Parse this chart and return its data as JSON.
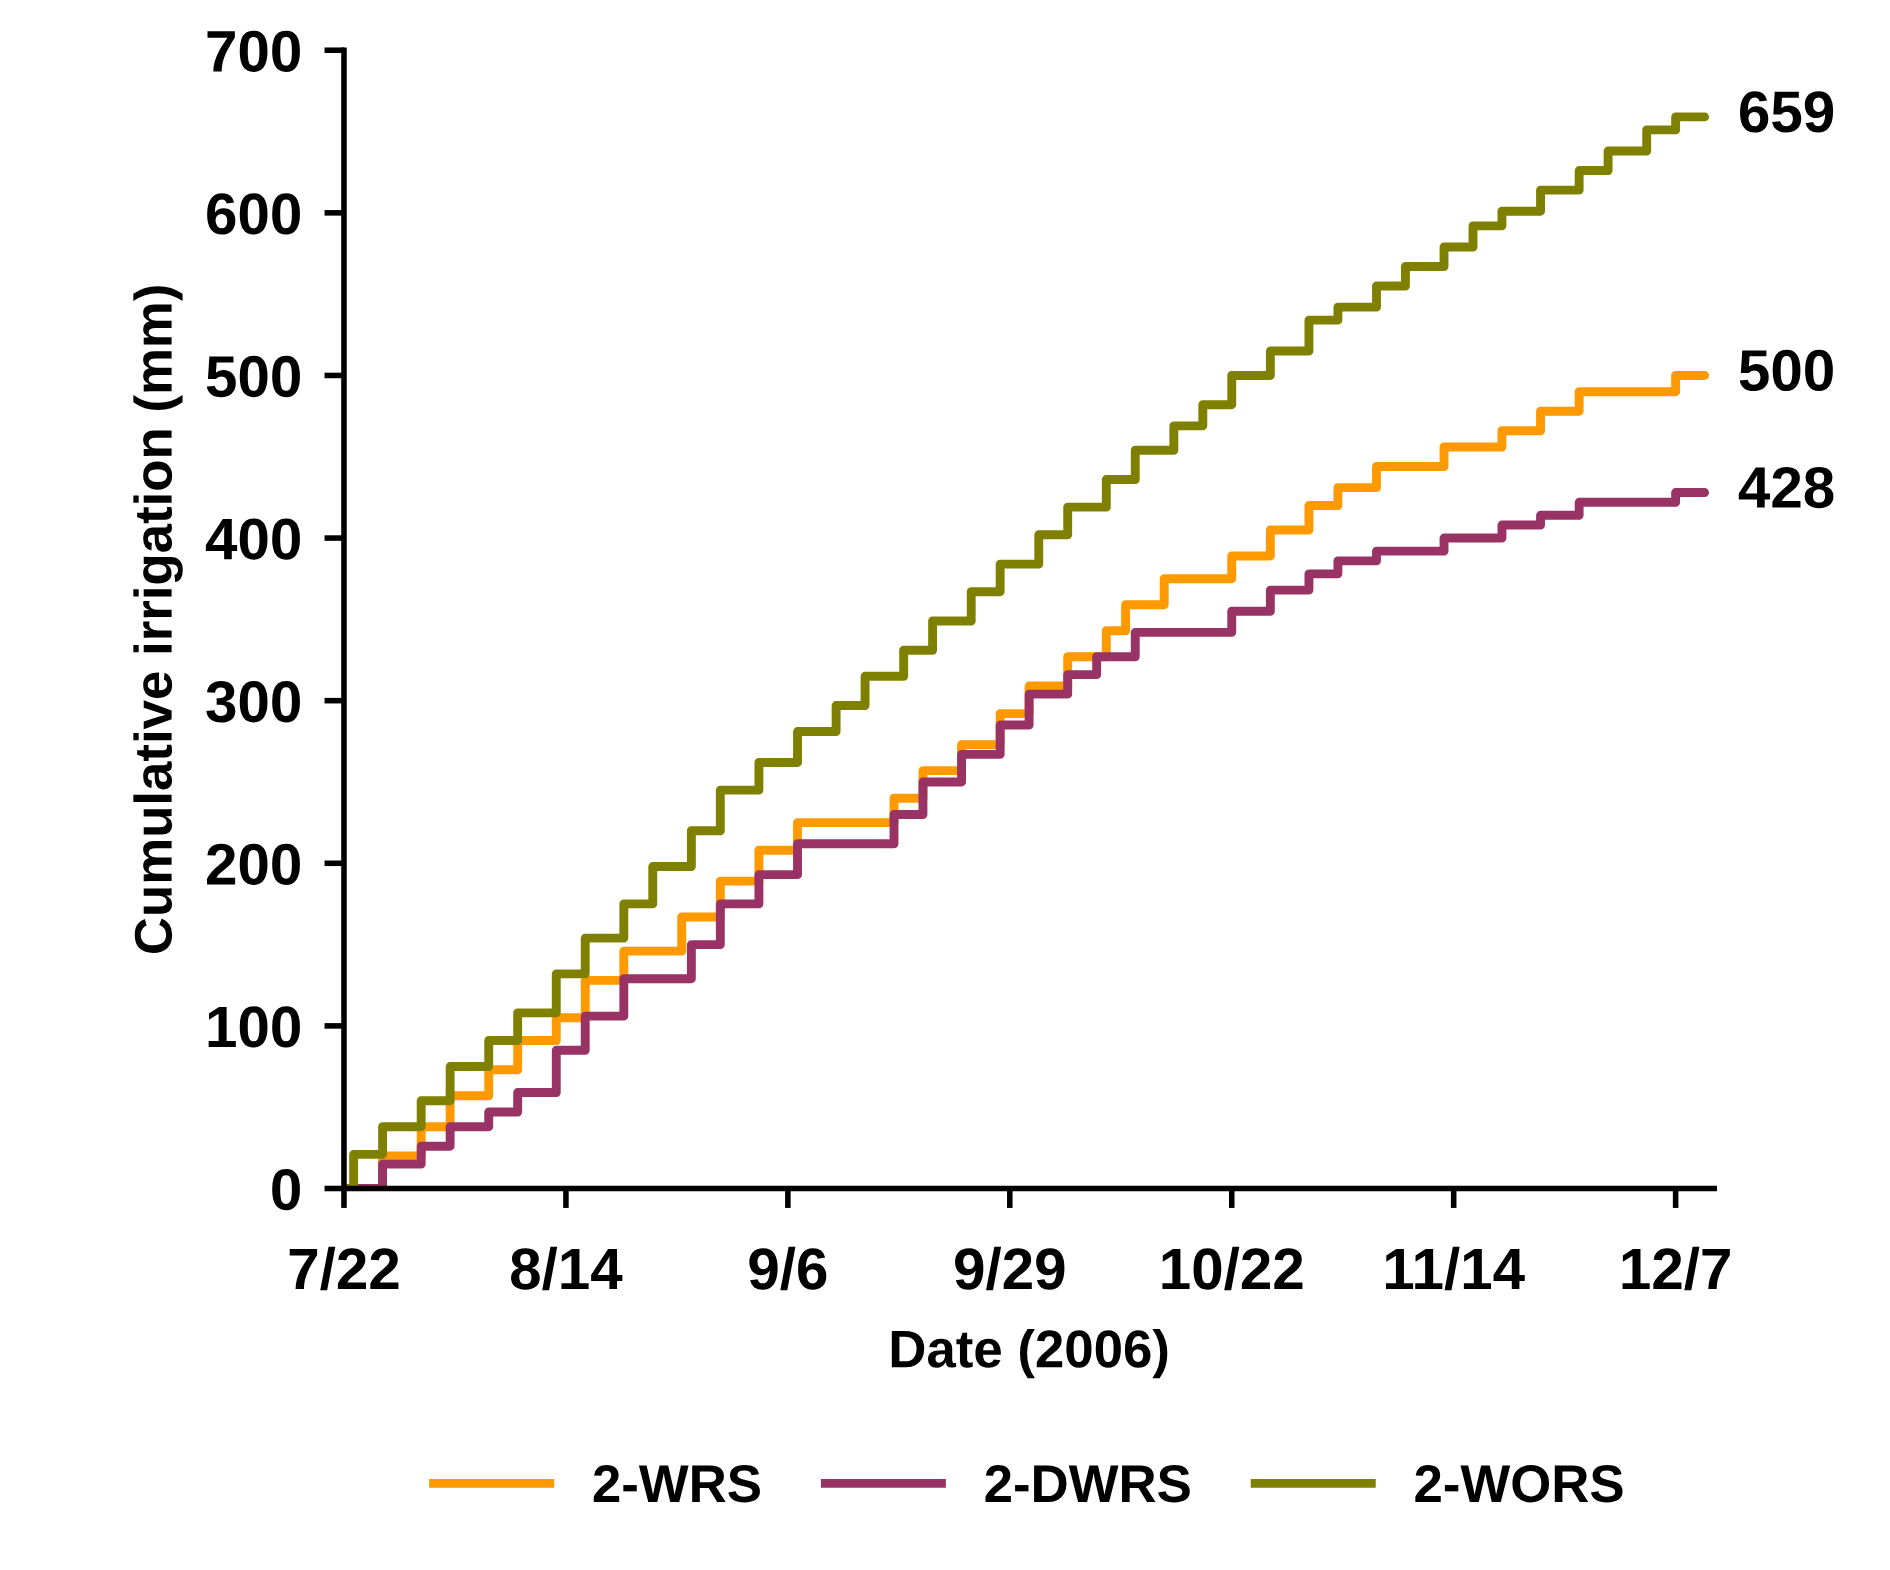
{
  "chart_data": {
    "type": "step",
    "xlabel": "Date (2006)",
    "ylabel": "Cumulative irrigation (mm)",
    "xlim": [
      "2006-07-22",
      "2006-12-11"
    ],
    "xticks": [
      {
        "value": "2006-07-22",
        "label": "7/22"
      },
      {
        "value": "2006-08-14",
        "label": "8/14"
      },
      {
        "value": "2006-09-06",
        "label": "9/6"
      },
      {
        "value": "2006-09-29",
        "label": "9/29"
      },
      {
        "value": "2006-10-22",
        "label": "10/22"
      },
      {
        "value": "2006-11-14",
        "label": "11/14"
      },
      {
        "value": "2006-12-07",
        "label": "12/7"
      }
    ],
    "ylim": [
      0,
      700
    ],
    "yticks": [
      0,
      100,
      200,
      300,
      400,
      500,
      600,
      700
    ],
    "grid": false,
    "legend": "bottom",
    "marker": "none",
    "line_style": "solid",
    "series": [
      {
        "name": "2-WRS",
        "color": "#ff9900",
        "x": [
          "2006-07-22",
          "2006-07-26",
          "2006-07-30",
          "2006-08-02",
          "2006-08-06",
          "2006-08-09",
          "2006-08-13",
          "2006-08-16",
          "2006-08-20",
          "2006-08-26",
          "2006-08-30",
          "2006-09-03",
          "2006-09-07",
          "2006-09-17",
          "2006-09-20",
          "2006-09-24",
          "2006-09-28",
          "2006-10-01",
          "2006-10-05",
          "2006-10-09",
          "2006-10-11",
          "2006-10-15",
          "2006-10-22",
          "2006-10-26",
          "2006-10-30",
          "2006-11-02",
          "2006-11-06",
          "2006-11-13",
          "2006-11-19",
          "2006-11-23",
          "2006-11-27",
          "2006-12-07",
          "2006-12-10"
        ],
        "values": [
          0,
          20,
          38,
          57,
          73,
          91,
          105,
          128,
          146,
          167,
          189,
          208,
          225,
          240,
          257,
          273,
          292,
          309,
          327,
          343,
          359,
          375,
          389,
          405,
          420,
          431,
          444,
          456,
          466,
          478,
          490,
          500,
          500
        ]
      },
      {
        "name": "2-DWRS",
        "color": "#993366",
        "x": [
          "2006-07-22",
          "2006-07-26",
          "2006-07-30",
          "2006-08-02",
          "2006-08-06",
          "2006-08-09",
          "2006-08-13",
          "2006-08-16",
          "2006-08-20",
          "2006-08-27",
          "2006-08-30",
          "2006-09-03",
          "2006-09-07",
          "2006-09-17",
          "2006-09-20",
          "2006-09-24",
          "2006-09-28",
          "2006-10-01",
          "2006-10-05",
          "2006-10-08",
          "2006-10-12",
          "2006-10-22",
          "2006-10-26",
          "2006-10-30",
          "2006-11-02",
          "2006-11-06",
          "2006-11-13",
          "2006-11-19",
          "2006-11-23",
          "2006-11-27",
          "2006-12-07",
          "2006-12-10"
        ],
        "values": [
          0,
          15,
          26,
          38,
          47,
          59,
          85,
          106,
          129,
          150,
          175,
          193,
          212,
          230,
          250,
          267,
          285,
          304,
          316,
          327,
          342,
          355,
          368,
          378,
          386,
          392,
          400,
          408,
          414,
          422,
          428,
          428
        ]
      },
      {
        "name": "2-WORS",
        "color": "#808000",
        "x": [
          "2006-07-22",
          "2006-07-23",
          "2006-07-26",
          "2006-07-30",
          "2006-08-02",
          "2006-08-06",
          "2006-08-09",
          "2006-08-13",
          "2006-08-16",
          "2006-08-20",
          "2006-08-23",
          "2006-08-27",
          "2006-08-30",
          "2006-09-03",
          "2006-09-07",
          "2006-09-11",
          "2006-09-14",
          "2006-09-18",
          "2006-09-21",
          "2006-09-25",
          "2006-09-28",
          "2006-10-02",
          "2006-10-05",
          "2006-10-09",
          "2006-10-12",
          "2006-10-16",
          "2006-10-19",
          "2006-10-22",
          "2006-10-26",
          "2006-10-30",
          "2006-11-02",
          "2006-11-06",
          "2006-11-09",
          "2006-11-13",
          "2006-11-16",
          "2006-11-19",
          "2006-11-23",
          "2006-11-27",
          "2006-11-30",
          "2006-12-04",
          "2006-12-07",
          "2006-12-10"
        ],
        "values": [
          0,
          21,
          38,
          54,
          75,
          91,
          108,
          132,
          154,
          175,
          198,
          220,
          245,
          262,
          281,
          297,
          315,
          331,
          349,
          367,
          384,
          402,
          419,
          436,
          454,
          469,
          482,
          500,
          515,
          534,
          542,
          555,
          567,
          579,
          592,
          601,
          614,
          626,
          638,
          651,
          659,
          659
        ]
      }
    ],
    "annotations": [
      {
        "text": "659",
        "x": "2006-12-10",
        "y": 659
      },
      {
        "text": "500",
        "x": "2006-12-10",
        "y": 500
      },
      {
        "text": "428",
        "x": "2006-12-10",
        "y": 428
      }
    ]
  }
}
